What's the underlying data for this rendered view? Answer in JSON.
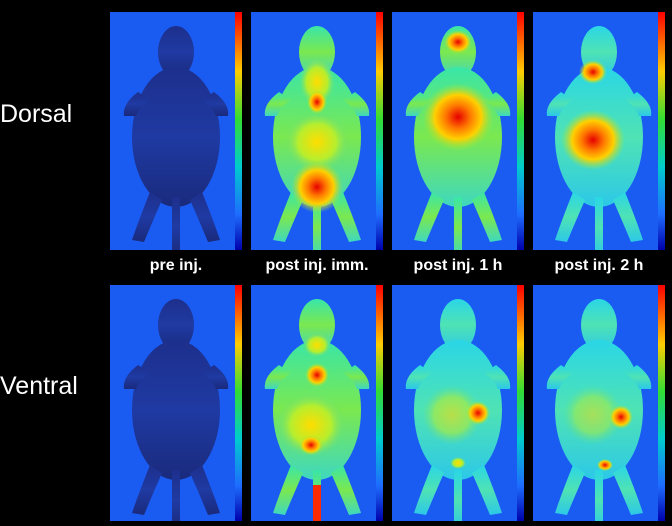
{
  "rows": [
    {
      "label": "Dorsal"
    },
    {
      "label": "Ventral"
    }
  ],
  "columns": [
    {
      "label": "pre inj."
    },
    {
      "label": "post inj. imm."
    },
    {
      "label": "post inj. 1 h"
    },
    {
      "label": "post inj. 2 h"
    }
  ],
  "colors": {
    "background": "#000000",
    "panel_background": "#1a5cf2",
    "scale_high": "#ff0000",
    "scale_low": "#0000ff"
  }
}
